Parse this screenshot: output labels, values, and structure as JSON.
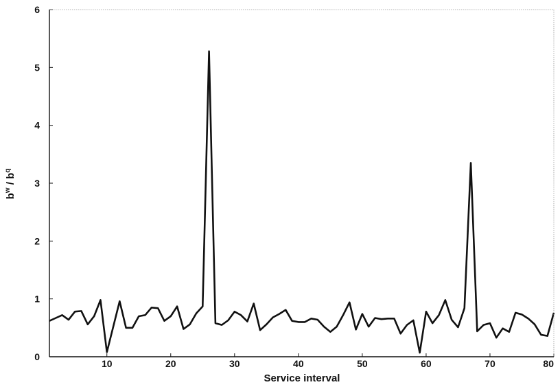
{
  "chart_data": {
    "type": "line",
    "title": "",
    "xlabel": "Service interval",
    "ylabel_base": "b",
    "ylabel_sup1": "w",
    "ylabel_sep": " / b",
    "ylabel_sup2": "q",
    "xlim": [
      1,
      80
    ],
    "ylim": [
      0,
      6
    ],
    "x_ticks": [
      10,
      20,
      30,
      40,
      50,
      60,
      70,
      80
    ],
    "y_ticks": [
      0,
      1,
      2,
      3,
      4,
      5,
      6
    ],
    "grid": false,
    "legend": "none",
    "line_color": "#111111",
    "series": [
      {
        "x": [
          1,
          2,
          3,
          4,
          5,
          6,
          7,
          8,
          9,
          10,
          11,
          12,
          13,
          14,
          15,
          16,
          17,
          18,
          19,
          20,
          21,
          22,
          23,
          24,
          25,
          26,
          27,
          28,
          29,
          30,
          31,
          32,
          33,
          34,
          35,
          36,
          37,
          38,
          39,
          40,
          41,
          42,
          43,
          44,
          45,
          46,
          47,
          48,
          49,
          50,
          51,
          52,
          53,
          54,
          55,
          56,
          57,
          58,
          59,
          60,
          61,
          62,
          63,
          64,
          65,
          66,
          67,
          68,
          69,
          70,
          71,
          72,
          73,
          74,
          75,
          76,
          77,
          78,
          79,
          80
        ],
        "values": [
          0.62,
          0.67,
          0.72,
          0.64,
          0.78,
          0.79,
          0.56,
          0.7,
          0.98,
          0.08,
          0.52,
          0.96,
          0.5,
          0.5,
          0.7,
          0.72,
          0.85,
          0.84,
          0.62,
          0.7,
          0.87,
          0.48,
          0.56,
          0.75,
          0.87,
          5.28,
          0.58,
          0.55,
          0.63,
          0.78,
          0.72,
          0.61,
          0.92,
          0.46,
          0.56,
          0.68,
          0.74,
          0.81,
          0.62,
          0.6,
          0.6,
          0.66,
          0.64,
          0.52,
          0.43,
          0.52,
          0.72,
          0.94,
          0.47,
          0.74,
          0.52,
          0.67,
          0.65,
          0.66,
          0.66,
          0.4,
          0.55,
          0.63,
          0.07,
          0.78,
          0.58,
          0.72,
          0.98,
          0.64,
          0.51,
          0.84,
          3.35,
          0.44,
          0.55,
          0.58,
          0.33,
          0.49,
          0.43,
          0.76,
          0.73,
          0.66,
          0.56,
          0.38,
          0.36,
          0.76
        ]
      }
    ]
  }
}
